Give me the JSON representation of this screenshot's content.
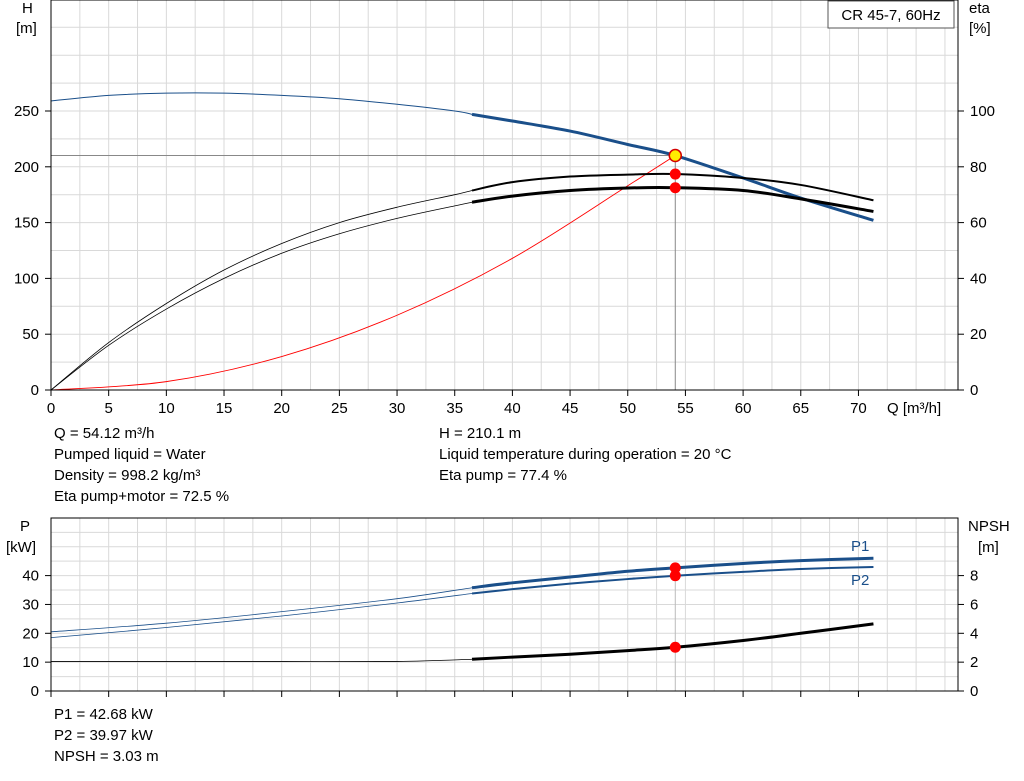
{
  "chart_data": [
    {
      "type": "line",
      "title": "CR 45-7, 60Hz",
      "xlabel": "Q [m³/h]",
      "ylabel_left": [
        "H",
        "[m]"
      ],
      "ylabel_right": [
        "eta",
        "[%]"
      ],
      "xlim": [
        0,
        78
      ],
      "ylim_left": [
        0,
        300
      ],
      "ylim_right": [
        0,
        120
      ],
      "x_ticks": [
        0,
        5,
        10,
        15,
        20,
        25,
        30,
        35,
        40,
        45,
        50,
        55,
        60,
        65,
        70
      ],
      "y_ticks_left": [
        0,
        50,
        100,
        150,
        200,
        250
      ],
      "y_ticks_right": [
        0,
        20,
        40,
        60,
        80,
        100
      ],
      "grid": true,
      "series": [
        {
          "axis": "left",
          "color": "#1a4f8a",
          "x": [
            0,
            5,
            10,
            15,
            20,
            25,
            30,
            35,
            36.5,
            40,
            45,
            50,
            54.12,
            60,
            65,
            71.3
          ],
          "y": [
            259,
            264,
            266,
            266,
            264,
            261,
            256,
            250,
            247,
            241,
            232,
            220,
            210.1,
            190,
            172,
            152
          ]
        },
        {
          "axis": "right",
          "color": "#000000",
          "x": [
            0,
            5,
            10,
            15,
            20,
            25,
            30,
            35,
            36.5,
            40,
            45,
            50,
            54.12,
            60,
            65,
            71.3
          ],
          "y": [
            0,
            17,
            31,
            43,
            52.5,
            60,
            65.5,
            70,
            71.5,
            74.5,
            76.5,
            77.2,
            77.4,
            76,
            73.5,
            68
          ]
        },
        {
          "axis": "right",
          "color": "#000000",
          "x": [
            0,
            5,
            10,
            15,
            20,
            25,
            30,
            35,
            36.5,
            40,
            45,
            50,
            54.12,
            60,
            65,
            71.3
          ],
          "y": [
            0,
            16,
            29,
            40,
            49,
            56,
            61.5,
            66,
            67.3,
            69.5,
            71.5,
            72.4,
            72.5,
            71.5,
            68.5,
            64
          ]
        },
        {
          "axis": "left",
          "color": "#ff0000",
          "x": [
            0,
            10,
            20,
            30,
            40,
            50,
            54.12
          ],
          "y": [
            0,
            7.5,
            30,
            67,
            118,
            183,
            210.1
          ]
        }
      ],
      "operating_point": {
        "q": 54.12,
        "h": 210.1,
        "eta_pump": 77.4,
        "eta_pump_motor": 72.5
      }
    },
    {
      "type": "line",
      "ylabel_left": [
        "P",
        "[kW]"
      ],
      "ylabel_right": [
        "NPSH",
        "[m]"
      ],
      "xlim": [
        0,
        78
      ],
      "ylim_left": [
        0,
        50
      ],
      "ylim_right": [
        0,
        10
      ],
      "y_ticks_left": [
        0,
        10,
        20,
        30,
        40
      ],
      "y_ticks_right": [
        0,
        2,
        4,
        6,
        8
      ],
      "grid": true,
      "series": [
        {
          "name": "P1",
          "axis": "left",
          "color": "#1a4f8a",
          "x": [
            0,
            10,
            20,
            30,
            36.5,
            40,
            45,
            50,
            54.12,
            60,
            65,
            71.3
          ],
          "y": [
            20.5,
            23.5,
            27.5,
            32,
            35.8,
            37.5,
            39.5,
            41.5,
            42.68,
            44.2,
            45.2,
            46
          ]
        },
        {
          "name": "P2",
          "axis": "left",
          "color": "#1a4f8a",
          "x": [
            0,
            10,
            20,
            30,
            36.5,
            40,
            45,
            50,
            54.12,
            60,
            65,
            71.3
          ],
          "y": [
            18.5,
            22,
            26,
            30.5,
            33.8,
            35.3,
            37.2,
            38.8,
            39.97,
            41.3,
            42.3,
            43
          ]
        },
        {
          "axis": "right",
          "color": "#000000",
          "x": [
            0,
            10,
            20,
            30,
            36.5,
            40,
            45,
            50,
            54.12,
            60,
            65,
            71.3
          ],
          "y": [
            2.05,
            2.05,
            2.05,
            2.05,
            2.2,
            2.35,
            2.55,
            2.8,
            3.03,
            3.5,
            4,
            4.65
          ]
        }
      ],
      "operating_point": {
        "q": 54.12,
        "p1": 42.68,
        "p2": 39.97,
        "npsh": 3.03
      }
    }
  ],
  "info_top_left": [
    "Q = 54.12 m³/h",
    "Pumped liquid = Water",
    "Density = 998.2 kg/m³",
    "Eta pump+motor = 72.5 %"
  ],
  "info_top_right": [
    "H = 210.1 m",
    "Liquid temperature during operation = 20 °C",
    "Eta pump = 77.4 %"
  ],
  "info_bottom": [
    "P1 = 42.68 kW",
    "P2 = 39.97 kW",
    "NPSH = 3.03 m"
  ]
}
